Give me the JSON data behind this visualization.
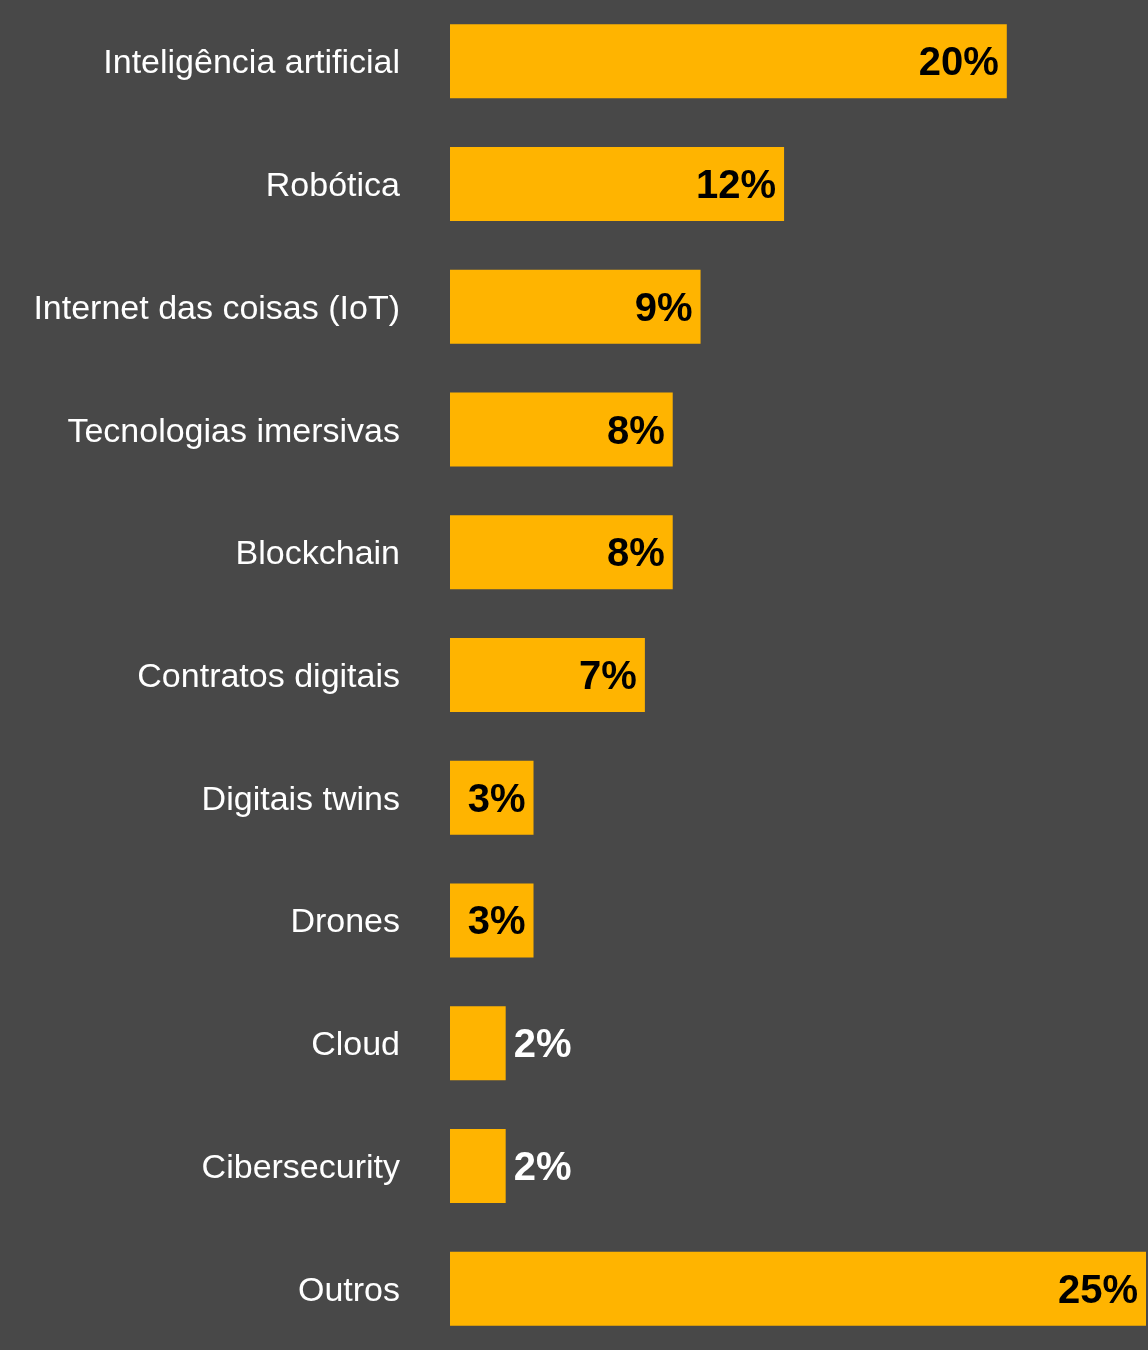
{
  "chart_data": {
    "type": "bar",
    "orientation": "horizontal",
    "categories": [
      "Inteligência artificial",
      "Robótica",
      "Internet das coisas (IoT)",
      "Tecnologias imersivas",
      "Blockchain",
      "Contratos digitais",
      "Digitais twins",
      "Drones",
      "Cloud",
      "Cibersecurity",
      "Outros"
    ],
    "values": [
      20,
      12,
      9,
      8,
      8,
      7,
      3,
      3,
      2,
      2,
      25
    ],
    "value_labels": [
      "20%",
      "12%",
      "9%",
      "8%",
      "8%",
      "7%",
      "3%",
      "3%",
      "2%",
      "2%",
      "25%"
    ],
    "color": "#ffb400",
    "xlim": [
      0,
      25
    ],
    "tick_labels": "y"
  }
}
